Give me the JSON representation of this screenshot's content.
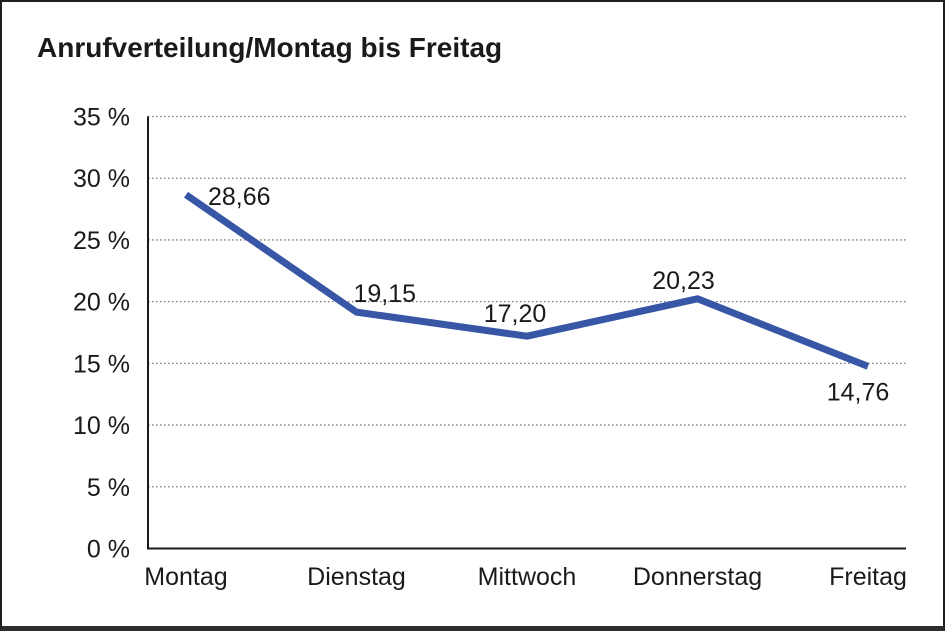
{
  "chart_data": {
    "type": "line",
    "title": "Anrufverteilung/Montag bis Freitag",
    "categories": [
      "Montag",
      "Dienstag",
      "Mittwoch",
      "Donnerstag",
      "Freitag"
    ],
    "values": [
      28.66,
      19.15,
      17.2,
      20.23,
      14.76
    ],
    "point_labels": [
      "28,66",
      "19,15",
      "17,20",
      "20,23",
      "14,76"
    ],
    "xlabel": "",
    "ylabel": "",
    "ylim": [
      0,
      35
    ],
    "y_tick_step": 5,
    "y_tick_suffix": " %",
    "y_tick_labels": [
      "0 %",
      "5 %",
      "10 %",
      "15 %",
      "20 %",
      "25 %",
      "30 %",
      "35 %"
    ],
    "grid": "horizontal-dotted",
    "legend": "none",
    "colors": {
      "line": "#3757A6",
      "axis": "#1a1a1a",
      "text": "#1a1a1a",
      "gridline": "#7f7f7f",
      "background": "#ffffff",
      "frame_border": "#1f1f1f"
    }
  }
}
